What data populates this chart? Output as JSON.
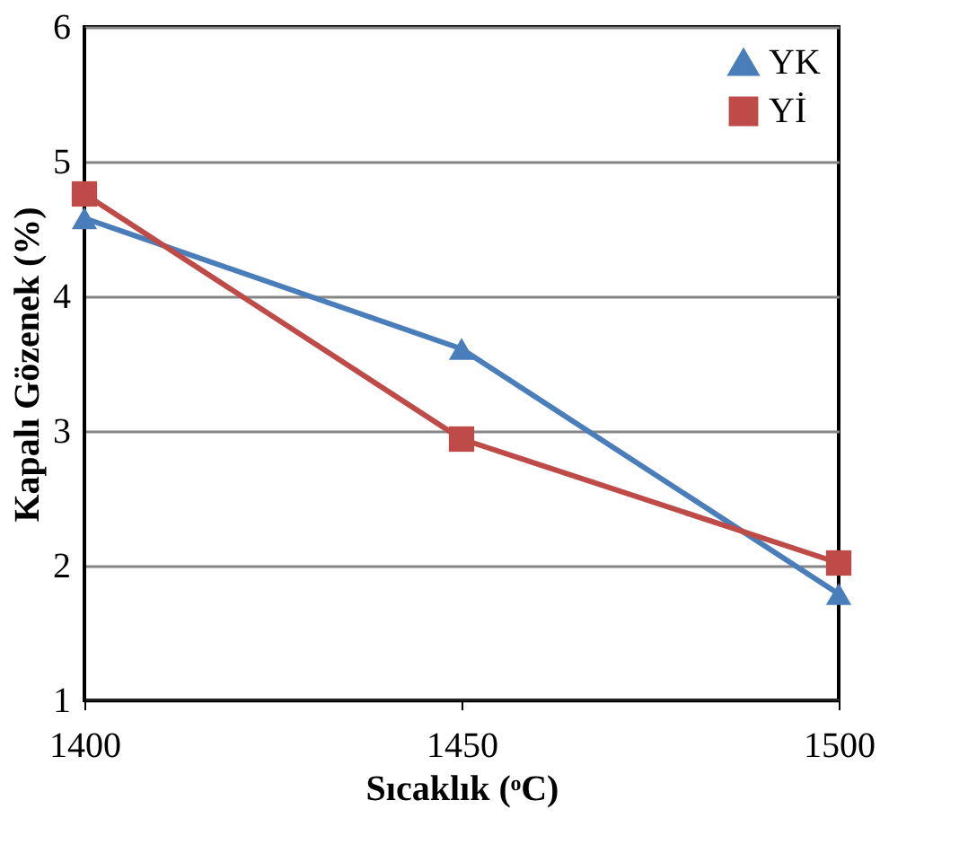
{
  "chart_data": {
    "type": "line",
    "xlabel": "Sıcaklık (ᵒC)",
    "ylabel": "Kapalı Gözenek (%)",
    "x": [
      1400,
      1450,
      1500
    ],
    "series": [
      {
        "name": "YK",
        "color": "#4a7ebb",
        "marker": "triangle",
        "values": [
          4.58,
          3.61,
          1.79
        ]
      },
      {
        "name": "Yİ",
        "color": "#be4b48",
        "marker": "square",
        "values": [
          4.76,
          2.94,
          2.02
        ]
      }
    ],
    "xlim": [
      1400,
      1500
    ],
    "xticks": [
      1400,
      1450,
      1500
    ],
    "ylim": [
      1,
      6
    ],
    "yticks": [
      1,
      2,
      3,
      4,
      5,
      6
    ],
    "grid": "y",
    "legend": "top right",
    "line_style": "solid"
  }
}
